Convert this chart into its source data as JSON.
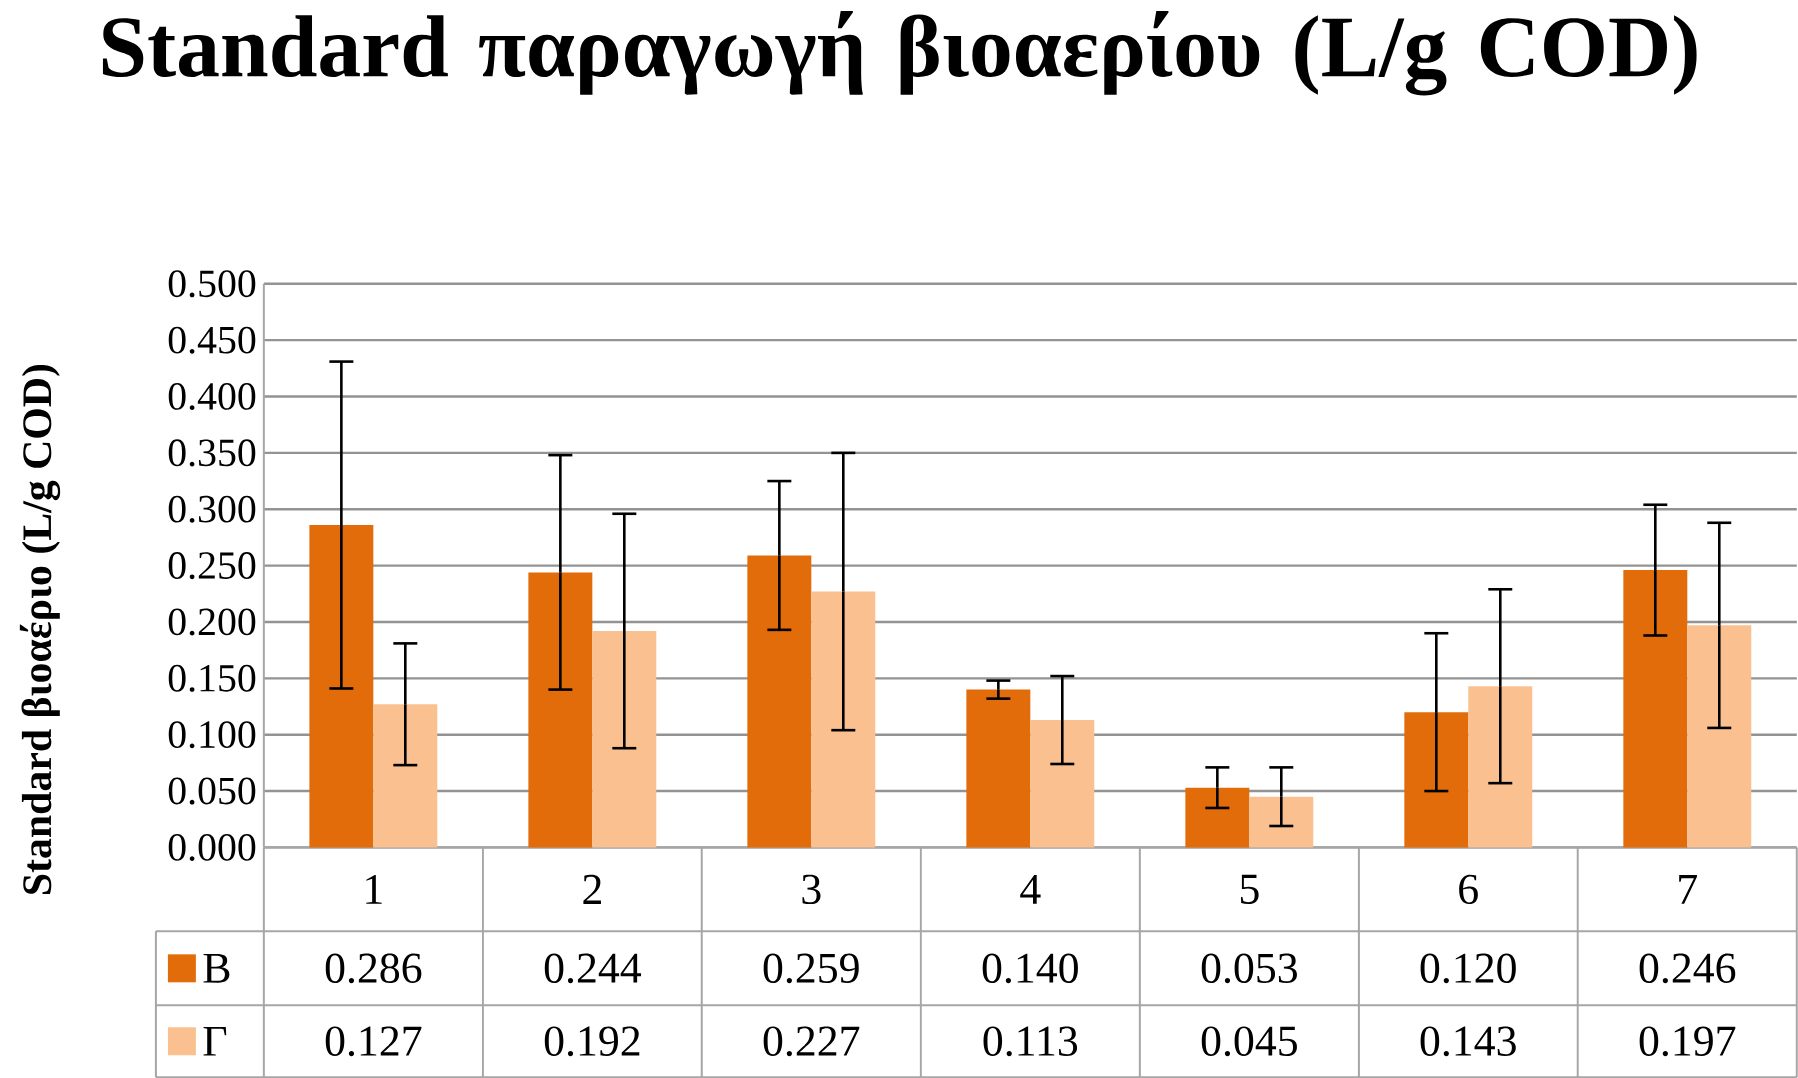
{
  "chart_data": {
    "type": "bar",
    "title": "Standard παραγωγή βιοαερίου (L/g COD)",
    "ylabel": "Standard βιοαέριο (L/g COD)",
    "categories": [
      "1",
      "2",
      "3",
      "4",
      "5",
      "6",
      "7"
    ],
    "series": [
      {
        "name": "Β",
        "color": "#e36c0a",
        "values": [
          0.286,
          0.244,
          0.259,
          0.14,
          0.053,
          0.12,
          0.246
        ],
        "errors": [
          0.145,
          0.104,
          0.066,
          0.008,
          0.018,
          0.07,
          0.058
        ],
        "value_labels": [
          "0.286",
          "0.244",
          "0.259",
          "0.140",
          "0.053",
          "0.120",
          "0.246"
        ]
      },
      {
        "name": "Γ",
        "color": "#fac090",
        "values": [
          0.127,
          0.192,
          0.227,
          0.113,
          0.045,
          0.143,
          0.197
        ],
        "errors": [
          0.054,
          0.104,
          0.123,
          0.039,
          0.026,
          0.086,
          0.091
        ],
        "value_labels": [
          "0.127",
          "0.192",
          "0.227",
          "0.113",
          "0.045",
          "0.143",
          "0.197"
        ]
      }
    ],
    "ylim": [
      0,
      0.5
    ],
    "yticks": [
      {
        "value": 0,
        "label": "0.000"
      },
      {
        "value": 0.05,
        "label": "0.050"
      },
      {
        "value": 0.1,
        "label": "0.100"
      },
      {
        "value": 0.15,
        "label": "0.150"
      },
      {
        "value": 0.2,
        "label": "0.200"
      },
      {
        "value": 0.25,
        "label": "0.250"
      },
      {
        "value": 0.3,
        "label": "0.300"
      },
      {
        "value": 0.35,
        "label": "0.350"
      },
      {
        "value": 0.4,
        "label": "0.400"
      },
      {
        "value": 0.45,
        "label": "0.450"
      },
      {
        "value": 0.5,
        "label": "0.500"
      }
    ],
    "grid": "y",
    "legend": "bottom"
  }
}
